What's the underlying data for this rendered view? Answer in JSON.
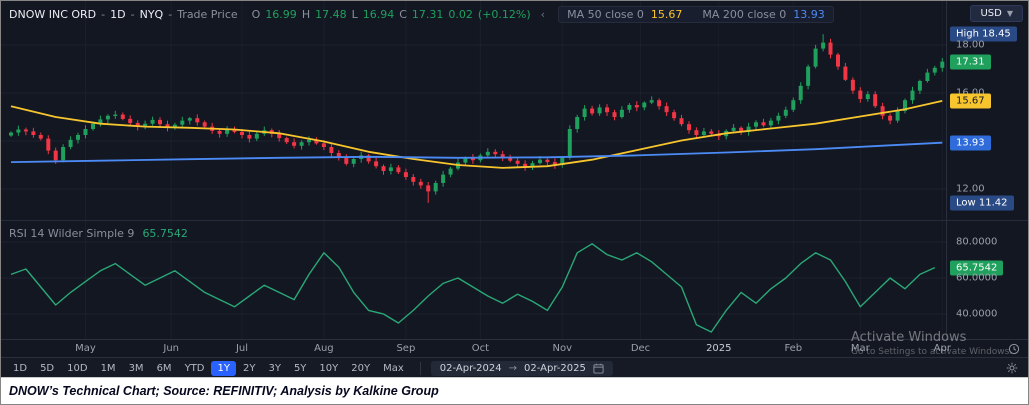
{
  "header": {
    "symbol": "DNOW INC ORD",
    "sep": "-",
    "interval": "1D",
    "exchange": "NYQ",
    "series_type": "Trade Price",
    "o_label": "O",
    "o_value": "16.99",
    "h_label": "H",
    "h_value": "17.48",
    "l_label": "L",
    "l_value": "16.94",
    "c_label": "C",
    "c_value": "17.31",
    "change": "0.02",
    "change_pct": "(+0.12%)"
  },
  "indicators": {
    "ma50_label": "MA 50 close 0",
    "ma50_value": "15.67",
    "ma200_label": "MA 200 close 0",
    "ma200_value": "13.93",
    "rsi_label": "RSI 14 Wilder Simple 9",
    "rsi_value": "65.7542"
  },
  "axis": {
    "currency": "USD"
  },
  "toolbar": {
    "ranges": [
      "1D",
      "5D",
      "10D",
      "1M",
      "3M",
      "6M",
      "YTD",
      "1Y",
      "2Y",
      "3Y",
      "5Y",
      "10Y",
      "20Y",
      "Max"
    ],
    "selected": "1Y",
    "date_from": "02-Apr-2024",
    "range_arrow": "→",
    "date_to": "02-Apr-2025"
  },
  "watermark": {
    "line1": "Activate Windows",
    "line2": "Go to Settings to activate Windows."
  },
  "caption": "DNOW’s Technical Chart; Source: REFINITIV; Analysis by Kalkine Group",
  "chart_data": {
    "type": "candlestick",
    "title": "DNOW INC ORD 1D NYQ Trade Price",
    "legend_position": "top-left",
    "grid": true,
    "colors": {
      "up": "#1fa05c",
      "down": "#f23645",
      "ma50": "#f7c52d",
      "ma200": "#4c8bf5",
      "rsi": "#2aa876",
      "grid_h": "#1d2230",
      "grid_v": "#1a1f2b",
      "selected_range": "#2962ff"
    },
    "x_ticks": [
      {
        "label": "May",
        "i": 10
      },
      {
        "label": "Jun",
        "i": 21.5
      },
      {
        "label": "Jul",
        "i": 31
      },
      {
        "label": "Aug",
        "i": 42
      },
      {
        "label": "Sep",
        "i": 53
      },
      {
        "label": "Oct",
        "i": 63
      },
      {
        "label": "Nov",
        "i": 74
      },
      {
        "label": "Dec",
        "i": 84.5
      },
      {
        "label": "2025",
        "i": 95,
        "strong": true
      },
      {
        "label": "Feb",
        "i": 105
      },
      {
        "label": "Mar",
        "i": 114
      },
      {
        "label": "Apr",
        "i": 125
      }
    ],
    "price_panel": {
      "ylim": [
        11.3,
        18.7
      ],
      "gridlines": [
        12,
        14,
        16,
        18
      ],
      "ohlc_last": {
        "open": 16.99,
        "high": 17.48,
        "low": 16.94,
        "close": 17.31,
        "change": 0.02,
        "change_pct": 0.12
      },
      "high_point": {
        "index": 109,
        "value": 18.45
      },
      "low_point": {
        "index": 56,
        "value": 11.42
      },
      "closes": [
        14.35,
        14.48,
        14.4,
        14.25,
        14.1,
        13.6,
        13.2,
        13.75,
        14.05,
        14.25,
        14.5,
        14.72,
        14.9,
        15.05,
        15.1,
        14.92,
        14.75,
        14.6,
        14.72,
        14.88,
        14.7,
        14.55,
        14.68,
        14.85,
        14.95,
        14.78,
        14.6,
        14.42,
        14.3,
        14.48,
        14.38,
        14.25,
        14.1,
        14.3,
        14.45,
        14.3,
        14.12,
        13.95,
        13.8,
        13.95,
        14.05,
        13.9,
        13.75,
        13.5,
        13.3,
        13.05,
        13.25,
        13.4,
        13.15,
        12.95,
        12.75,
        12.9,
        12.7,
        12.5,
        12.3,
        12.15,
        11.9,
        12.25,
        12.6,
        12.85,
        13.1,
        13.3,
        13.2,
        13.4,
        13.55,
        13.45,
        13.3,
        13.18,
        13.05,
        12.92,
        13.08,
        13.22,
        13.12,
        13.0,
        13.3,
        14.5,
        15.0,
        15.35,
        15.15,
        15.4,
        15.2,
        15.0,
        15.3,
        15.5,
        15.4,
        15.6,
        15.7,
        15.45,
        15.2,
        14.95,
        14.7,
        14.45,
        14.25,
        14.4,
        14.3,
        14.2,
        14.42,
        14.55,
        14.38,
        14.6,
        14.78,
        14.65,
        14.85,
        15.05,
        15.3,
        15.7,
        16.3,
        17.1,
        17.85,
        18.1,
        17.6,
        17.1,
        16.55,
        16.1,
        15.75,
        15.95,
        15.45,
        15.05,
        14.85,
        15.25,
        15.7,
        16.1,
        16.5,
        16.85,
        17.05,
        17.31
      ],
      "series": [
        {
          "name": "MA 50",
          "color": "#f7c52d",
          "last": 15.67,
          "idx": [
            0,
            6,
            12,
            18,
            24,
            30,
            36,
            42,
            48,
            54,
            60,
            66,
            72,
            78,
            84,
            90,
            96,
            102,
            108,
            114,
            120,
            125
          ],
          "values": [
            15.45,
            15.0,
            14.72,
            14.6,
            14.55,
            14.48,
            14.32,
            13.98,
            13.55,
            13.25,
            13.0,
            12.88,
            12.95,
            13.22,
            13.62,
            14.02,
            14.32,
            14.52,
            14.72,
            15.02,
            15.32,
            15.67
          ]
        },
        {
          "name": "MA 200",
          "color": "#4c8bf5",
          "last": 13.93,
          "idx": [
            0,
            12,
            24,
            36,
            48,
            60,
            72,
            84,
            96,
            108,
            118,
            125
          ],
          "values": [
            13.12,
            13.18,
            13.24,
            13.3,
            13.34,
            13.3,
            13.32,
            13.4,
            13.52,
            13.66,
            13.82,
            13.93
          ]
        }
      ]
    },
    "price_axis": [
      {
        "text": "High 18.45",
        "style": "navy",
        "price": 18.45
      },
      {
        "text": "18.00",
        "style": "plain",
        "price": 18.0
      },
      {
        "text": "17.31",
        "style": "green",
        "price": 17.31
      },
      {
        "text": "16.00",
        "style": "plain",
        "price": 16.0
      },
      {
        "text": "15.67",
        "style": "yellow",
        "price": 15.67
      },
      {
        "text": "14.00",
        "style": "plain",
        "price": 14.0
      },
      {
        "text": "13.93",
        "style": "blue",
        "price": 13.93
      },
      {
        "text": "12.00",
        "style": "plain",
        "price": 12.0
      },
      {
        "text": "Low 11.42",
        "style": "navy",
        "price": 11.42
      }
    ],
    "rsi_panel": {
      "label": "RSI 14 Wilder Simple 9",
      "last": 65.7542,
      "ylim": [
        25,
        85
      ],
      "gridlines": [
        40,
        60,
        80
      ],
      "values": [
        62,
        65,
        55,
        45,
        52,
        58,
        64,
        68,
        62,
        56,
        60,
        64,
        58,
        52,
        48,
        44,
        50,
        56,
        52,
        48,
        62,
        74,
        66,
        52,
        42,
        40,
        35,
        42,
        50,
        57,
        60,
        55,
        50,
        46,
        51,
        47,
        42,
        55,
        74,
        79,
        73,
        70,
        74,
        69,
        62,
        55,
        34,
        30,
        42,
        52,
        46,
        54,
        60,
        68,
        74,
        70,
        58,
        44,
        52,
        60,
        54,
        62,
        65.75
      ]
    },
    "rsi_axis": [
      {
        "text": "80.0000",
        "style": "plain",
        "value": 80
      },
      {
        "text": "65.7542",
        "style": "green",
        "value": 65.7542
      },
      {
        "text": "60.0000",
        "style": "plain",
        "value": 60
      },
      {
        "text": "40.0000",
        "style": "plain",
        "value": 40
      }
    ]
  }
}
